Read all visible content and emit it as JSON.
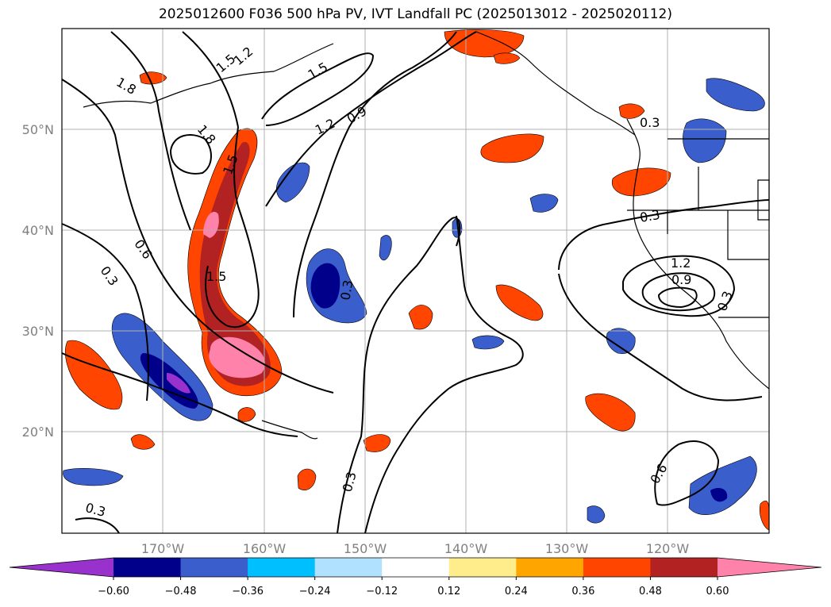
{
  "title": "2025012600 F036 500 hPa PV, IVT Landfall PC (2025013012 - 2025020112)",
  "lat_labels": [
    "50°N",
    "40°N",
    "30°N",
    "20°N"
  ],
  "lon_labels": [
    "170°W",
    "160°W",
    "150°W",
    "140°W",
    "130°W",
    "120°W"
  ],
  "contour_labels": [
    "1.8",
    "1.8",
    "1.5",
    "1.5",
    "1.5",
    "1.2",
    "0.9",
    "0.6",
    "0.3",
    "0.3",
    "0.3",
    "0.3",
    "0.3",
    "0.3",
    "0.6",
    "1.2",
    "0.9",
    "0.3",
    "1.2",
    "1.5"
  ],
  "colorbar": {
    "ticks": [
      "−0.60",
      "−0.48",
      "−0.36",
      "−0.24",
      "−0.12",
      "0.12",
      "0.24",
      "0.36",
      "0.48",
      "0.60"
    ],
    "colors": [
      "#9932cc",
      "#00008b",
      "#3a5fcd",
      "#00bfff",
      "#b0e2ff",
      "#ffffff",
      "#ffec8b",
      "#ffa500",
      "#ff4500",
      "#b22222",
      "#ff82ab",
      "#ff82ab"
    ]
  }
}
